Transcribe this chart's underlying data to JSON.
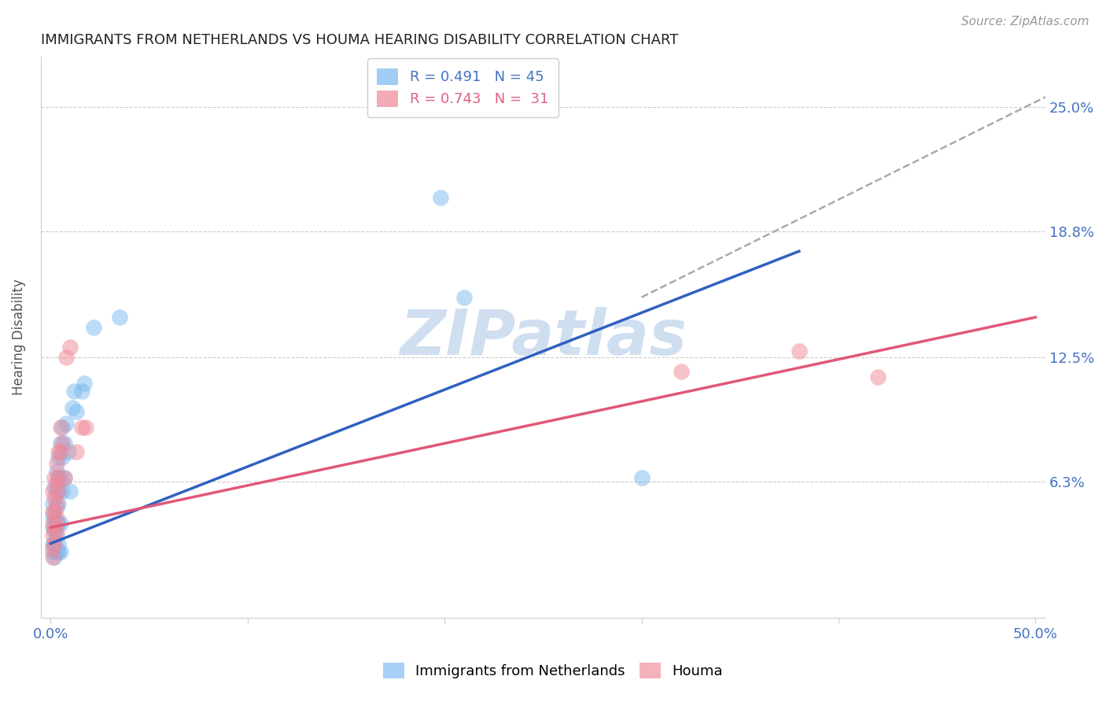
{
  "title": "IMMIGRANTS FROM NETHERLANDS VS HOUMA HEARING DISABILITY CORRELATION CHART",
  "source": "Source: ZipAtlas.com",
  "ylabel_label": "Hearing Disability",
  "y_tick_labels": [
    "6.3%",
    "12.5%",
    "18.8%",
    "25.0%"
  ],
  "y_tick_vals": [
    0.063,
    0.125,
    0.188,
    0.25
  ],
  "xlim": [
    -0.005,
    0.505
  ],
  "ylim": [
    -0.005,
    0.275
  ],
  "blue_color": "#7ab8f0",
  "pink_color": "#f08898",
  "trend_blue": "#3060c0",
  "trend_pink": "#e05878",
  "trend_dashed_color": "#aaaaaa",
  "watermark_color": "#d0dff0",
  "background_color": "#ffffff",
  "blue_scatter": [
    [
      0.001,
      0.052
    ],
    [
      0.001,
      0.04
    ],
    [
      0.001,
      0.046
    ],
    [
      0.001,
      0.032
    ],
    [
      0.001,
      0.028
    ],
    [
      0.002,
      0.06
    ],
    [
      0.002,
      0.044
    ],
    [
      0.002,
      0.038
    ],
    [
      0.002,
      0.032
    ],
    [
      0.002,
      0.025
    ],
    [
      0.003,
      0.068
    ],
    [
      0.003,
      0.058
    ],
    [
      0.003,
      0.05
    ],
    [
      0.003,
      0.042
    ],
    [
      0.003,
      0.036
    ],
    [
      0.003,
      0.028
    ],
    [
      0.004,
      0.075
    ],
    [
      0.004,
      0.065
    ],
    [
      0.004,
      0.058
    ],
    [
      0.004,
      0.052
    ],
    [
      0.004,
      0.042
    ],
    [
      0.004,
      0.032
    ],
    [
      0.004,
      0.028
    ],
    [
      0.005,
      0.082
    ],
    [
      0.005,
      0.065
    ],
    [
      0.005,
      0.042
    ],
    [
      0.005,
      0.028
    ],
    [
      0.006,
      0.09
    ],
    [
      0.006,
      0.075
    ],
    [
      0.006,
      0.058
    ],
    [
      0.007,
      0.082
    ],
    [
      0.007,
      0.065
    ],
    [
      0.008,
      0.092
    ],
    [
      0.009,
      0.078
    ],
    [
      0.01,
      0.058
    ],
    [
      0.011,
      0.1
    ],
    [
      0.012,
      0.108
    ],
    [
      0.013,
      0.098
    ],
    [
      0.016,
      0.108
    ],
    [
      0.017,
      0.112
    ],
    [
      0.022,
      0.14
    ],
    [
      0.198,
      0.205
    ],
    [
      0.3,
      0.065
    ],
    [
      0.21,
      0.155
    ],
    [
      0.035,
      0.145
    ]
  ],
  "pink_scatter": [
    [
      0.001,
      0.058
    ],
    [
      0.001,
      0.048
    ],
    [
      0.001,
      0.042
    ],
    [
      0.001,
      0.036
    ],
    [
      0.001,
      0.03
    ],
    [
      0.001,
      0.025
    ],
    [
      0.002,
      0.065
    ],
    [
      0.002,
      0.055
    ],
    [
      0.002,
      0.048
    ],
    [
      0.002,
      0.04
    ],
    [
      0.002,
      0.032
    ],
    [
      0.003,
      0.072
    ],
    [
      0.003,
      0.062
    ],
    [
      0.003,
      0.052
    ],
    [
      0.003,
      0.045
    ],
    [
      0.003,
      0.038
    ],
    [
      0.004,
      0.078
    ],
    [
      0.004,
      0.065
    ],
    [
      0.004,
      0.058
    ],
    [
      0.005,
      0.09
    ],
    [
      0.005,
      0.078
    ],
    [
      0.006,
      0.082
    ],
    [
      0.007,
      0.065
    ],
    [
      0.008,
      0.125
    ],
    [
      0.01,
      0.13
    ],
    [
      0.013,
      0.078
    ],
    [
      0.016,
      0.09
    ],
    [
      0.018,
      0.09
    ],
    [
      0.38,
      0.128
    ],
    [
      0.42,
      0.115
    ],
    [
      0.32,
      0.118
    ]
  ],
  "blue_line": [
    [
      0.0,
      0.032
    ],
    [
      0.38,
      0.178
    ]
  ],
  "pink_line": [
    [
      0.0,
      0.04
    ],
    [
      0.5,
      0.145
    ]
  ],
  "dashed_line": [
    [
      0.3,
      0.155
    ],
    [
      0.505,
      0.255
    ]
  ]
}
